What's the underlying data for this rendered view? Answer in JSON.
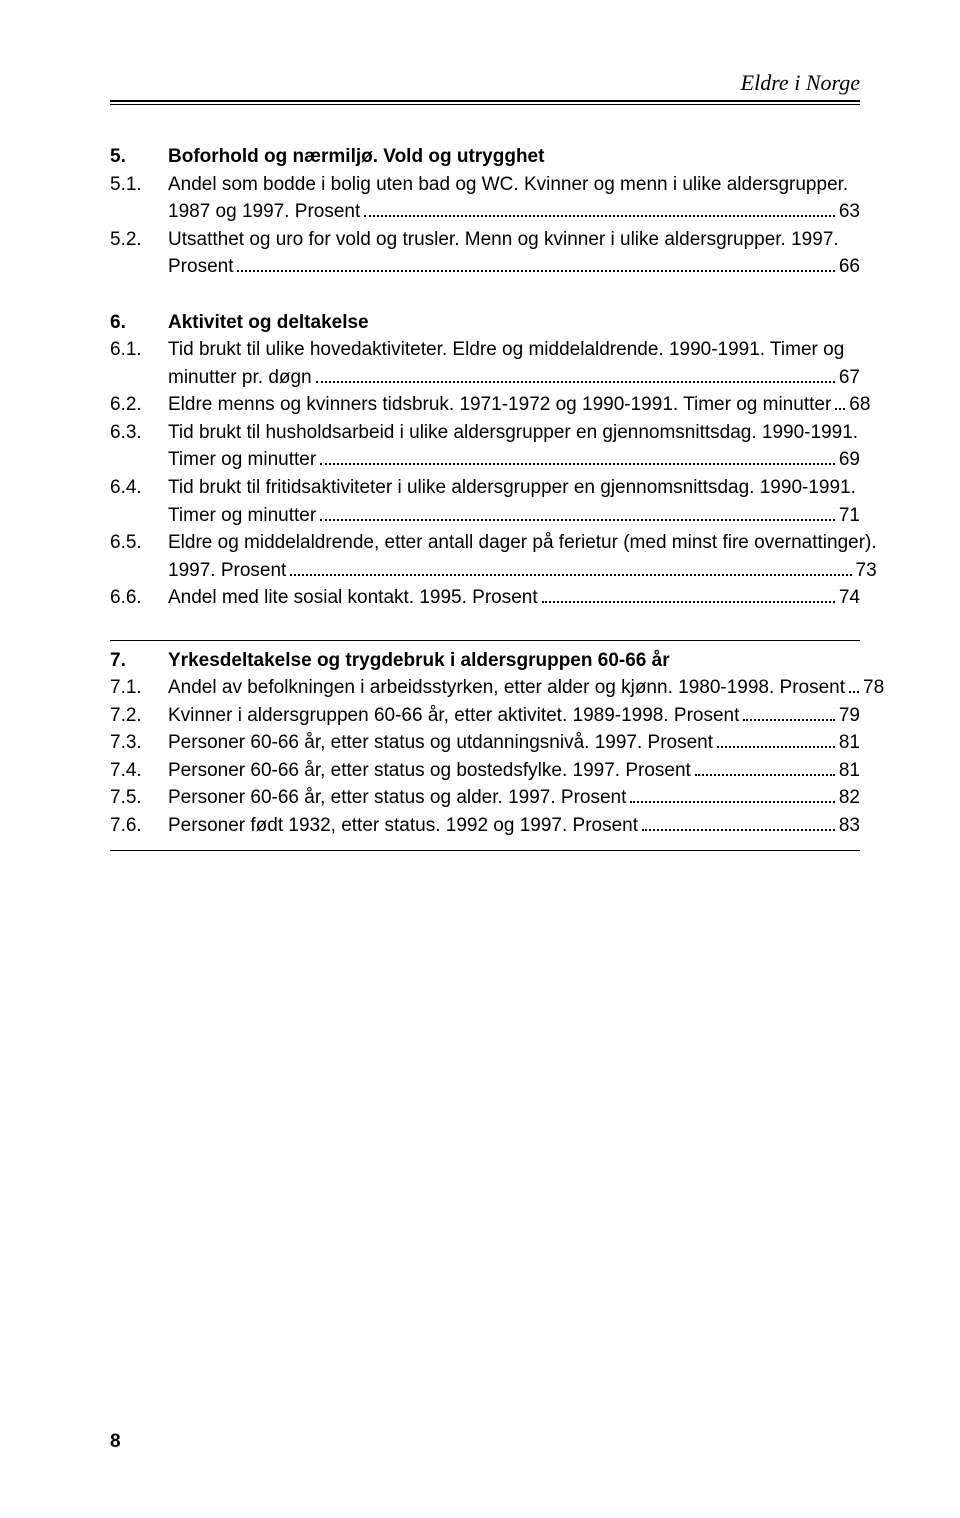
{
  "header_title": "Eldre i Norge",
  "footer_page": "8",
  "sections": [
    {
      "heading": {
        "num": "5.",
        "title": "Boforhold og nærmiljø. Vold og utrygghet"
      },
      "entries": [
        {
          "num": "5.1.",
          "lines": [
            "Andel som bodde i bolig uten bad og WC. Kvinner og menn i ulike aldersgrupper."
          ],
          "last_text": "1987 og 1997. Prosent",
          "page": "63"
        },
        {
          "num": "5.2.",
          "lines": [],
          "last_text": "Utsatthet og uro for vold og trusler. Menn og kvinner i ulike aldersgrupper. 1997.",
          "wraps": [
            {
              "text": "Prosent",
              "page": "66"
            }
          ]
        }
      ]
    },
    {
      "heading": {
        "num": "6.",
        "title": "Aktivitet og deltakelse"
      },
      "entries": [
        {
          "num": "6.1.",
          "lines": [
            "Tid brukt til ulike hovedaktiviteter. Eldre og middelaldrende. 1990-1991. Timer og"
          ],
          "last_text": "minutter pr. døgn",
          "page": "67"
        },
        {
          "num": "6.2.",
          "lines": [],
          "last_text": "Eldre menns og kvinners tidsbruk. 1971-1972 og 1990-1991. Timer og minutter",
          "page": "68"
        },
        {
          "num": "6.3.",
          "lines": [
            "Tid brukt til husholdsarbeid i ulike aldersgrupper en gjennomsnittsdag. 1990-1991."
          ],
          "last_text": "Timer og minutter",
          "page": "69"
        },
        {
          "num": "6.4.",
          "lines": [
            "Tid brukt til fritidsaktiviteter i ulike aldersgrupper en gjennomsnittsdag. 1990-1991."
          ],
          "last_text": "Timer og minutter",
          "page": "71"
        },
        {
          "num": "6.5.",
          "lines": [
            "Eldre og middelaldrende, etter antall dager på ferietur (med minst fire overnattinger)."
          ],
          "last_text": "1997. Prosent",
          "page": "73"
        },
        {
          "num": "6.6.",
          "lines": [],
          "last_text": "Andel med lite sosial kontakt. 1995. Prosent",
          "page": "74"
        }
      ]
    },
    {
      "heading": {
        "num": "7.",
        "title": "Yrkesdeltakelse og trygdebruk i aldersgruppen 60-66 år"
      },
      "top_hr": true,
      "entries": [
        {
          "num": "7.1.",
          "lines": [],
          "last_text": "Andel av befolkningen i arbeidsstyrken, etter alder og kjønn. 1980-1998. Prosent",
          "page": "78"
        },
        {
          "num": "7.2.",
          "lines": [],
          "last_text": "Kvinner i aldersgruppen 60-66 år, etter aktivitet. 1989-1998. Prosent",
          "page": "79"
        },
        {
          "num": "7.3.",
          "lines": [],
          "last_text": "Personer 60-66 år, etter status og utdanningsnivå. 1997. Prosent",
          "page": "81"
        },
        {
          "num": "7.4.",
          "lines": [],
          "last_text": "Personer 60-66 år, etter status og bostedsfylke. 1997. Prosent",
          "page": "81"
        },
        {
          "num": "7.5.",
          "lines": [],
          "last_text": "Personer 60-66 år, etter status og alder. 1997. Prosent",
          "page": "82"
        },
        {
          "num": "7.6.",
          "lines": [],
          "last_text": "Personer født 1932, etter status. 1992 og 1997. Prosent",
          "page": "83"
        }
      ],
      "bottom_hr": true
    }
  ]
}
